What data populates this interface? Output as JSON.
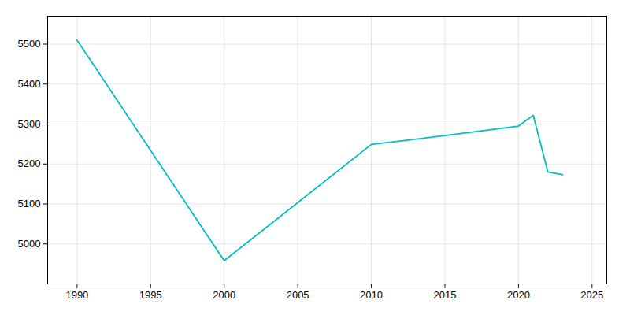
{
  "chart_data": {
    "type": "line",
    "x": [
      1990,
      2000,
      2010,
      2015,
      2020,
      2021,
      2022,
      2023
    ],
    "values": [
      5510,
      4958,
      5249,
      5271,
      5295,
      5322,
      5180,
      5173
    ],
    "color": "#00BFBF",
    "xlim": [
      1988,
      2026
    ],
    "ylim": [
      4900,
      5570
    ],
    "xticks": [
      1990,
      1995,
      2000,
      2005,
      2010,
      2015,
      2020,
      2025
    ],
    "yticks": [
      5000,
      5100,
      5200,
      5300,
      5400,
      5500
    ],
    "grid": true
  }
}
